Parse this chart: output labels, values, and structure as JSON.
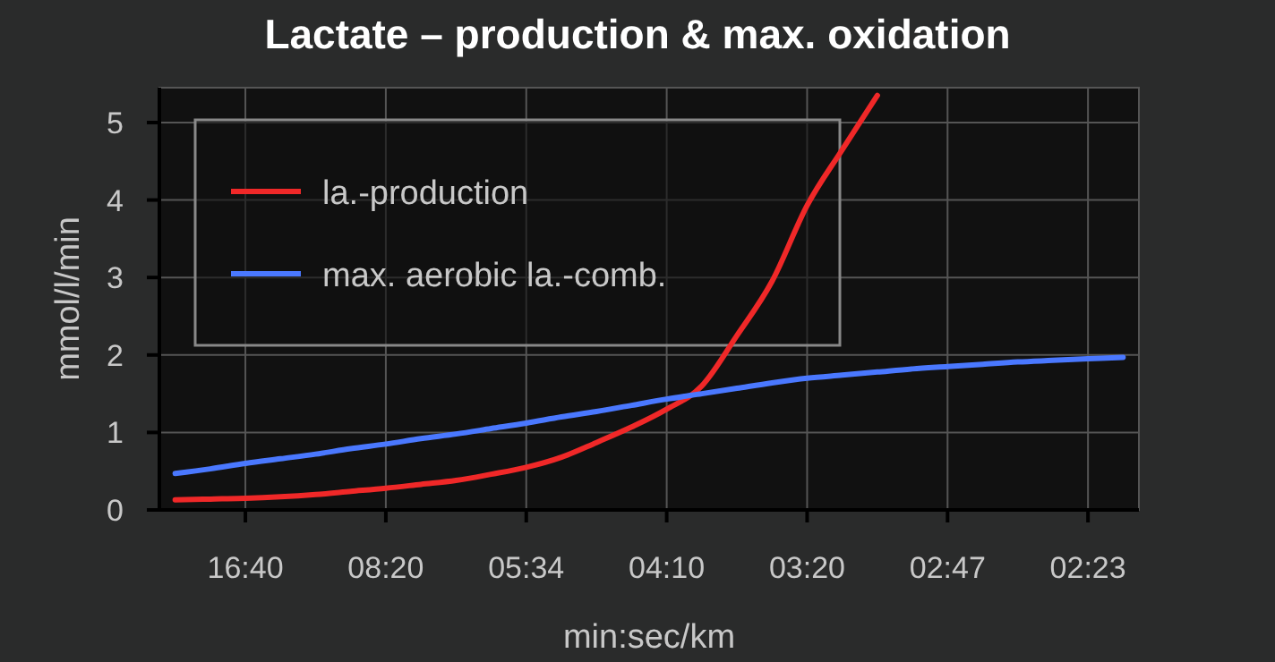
{
  "chart_data": {
    "type": "line",
    "title": "Lactate – production & max. oxidation",
    "xlabel": "min:sec/km",
    "ylabel": "mmol/l/min",
    "categories": [
      null,
      null,
      "16:40",
      null,
      null,
      null,
      "08:20",
      null,
      null,
      null,
      "05:34",
      null,
      null,
      null,
      "04:10",
      null,
      null,
      null,
      "03:20",
      null,
      null,
      null,
      "02:47",
      null,
      null,
      null,
      "02:23",
      null
    ],
    "ylim": [
      0,
      5.45
    ],
    "yticks": [
      0,
      1,
      2,
      3,
      4,
      5
    ],
    "grid": true,
    "legend": "top left",
    "series": [
      {
        "name": "la.-production",
        "color": "#f02828",
        "values": [
          0.13,
          0.14,
          0.15,
          0.17,
          0.2,
          0.24,
          0.28,
          0.33,
          0.38,
          0.46,
          0.55,
          0.68,
          0.87,
          1.07,
          1.3,
          1.6,
          2.25,
          2.95,
          3.93,
          4.65,
          5.35,
          null,
          null,
          null,
          null,
          null,
          null,
          null
        ]
      },
      {
        "name": "max. aerobic la.-comb.",
        "color": "#4a78ff",
        "values": [
          0.47,
          0.53,
          0.6,
          0.66,
          0.72,
          0.79,
          0.85,
          0.92,
          0.98,
          1.05,
          1.12,
          1.2,
          1.27,
          1.35,
          1.43,
          1.5,
          1.57,
          1.64,
          1.7,
          1.74,
          1.78,
          1.82,
          1.85,
          1.88,
          1.91,
          1.93,
          1.95,
          1.97
        ]
      }
    ]
  }
}
